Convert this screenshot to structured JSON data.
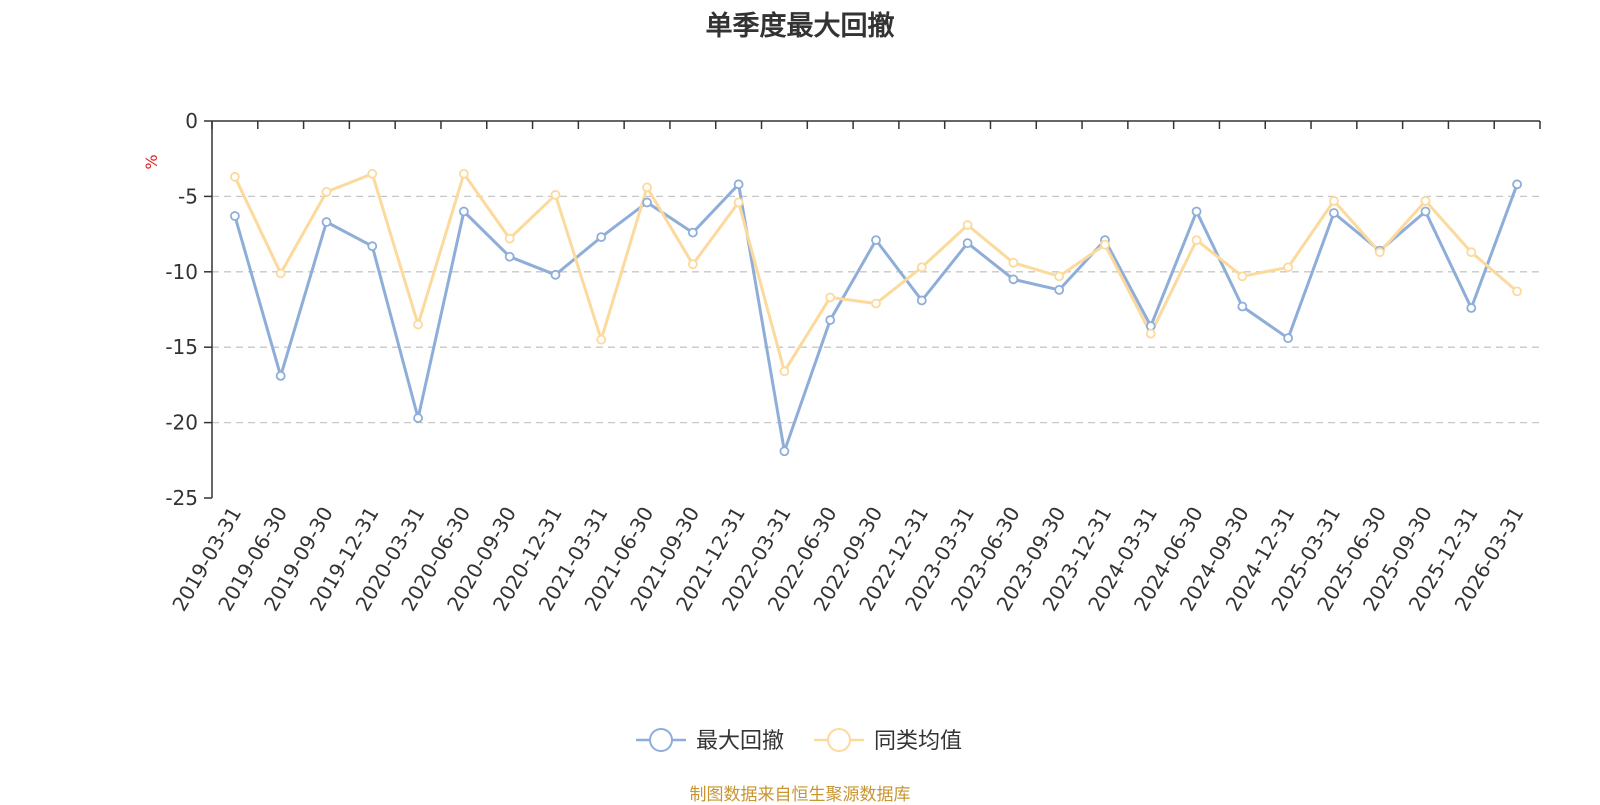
{
  "chart_data": {
    "type": "line",
    "title": "单季度最大回撤",
    "ylabel": "%",
    "ylim": [
      -25,
      0
    ],
    "yticks": [
      0,
      -5,
      -10,
      -15,
      -20,
      -25
    ],
    "grid": true,
    "legend_position": "bottom-center",
    "x": [
      "2019-03-31",
      "2019-06-30",
      "2019-09-30",
      "2019-12-31",
      "2020-03-31",
      "2020-06-30",
      "2020-09-30",
      "2020-12-31",
      "2021-03-31",
      "2021-06-30",
      "2021-09-30",
      "2021-12-31",
      "2022-03-31",
      "2022-06-30",
      "2022-09-30",
      "2022-12-31",
      "2023-03-31",
      "2023-06-30",
      "2023-09-30",
      "2023-12-31",
      "2024-03-31",
      "2024-06-30",
      "2024-09-30",
      "2024-12-31",
      "2025-03-31",
      "2025-06-30",
      "2025-09-30",
      "2025-12-31",
      "2026-03-31"
    ],
    "series": [
      {
        "name": "最大回撤",
        "color": "#8eaed9",
        "values": [
          -6.3,
          -16.9,
          -6.7,
          -8.3,
          -19.7,
          -6.0,
          -9.0,
          -10.2,
          -7.7,
          -5.4,
          -7.4,
          -4.2,
          -21.9,
          -13.2,
          -7.9,
          -11.9,
          -8.1,
          -10.5,
          -11.2,
          -7.9,
          -13.6,
          -6.0,
          -12.3,
          -14.4,
          -6.1,
          -8.6,
          -6.0,
          -12.4,
          -4.2
        ]
      },
      {
        "name": "同类均值",
        "color": "#fcd99c",
        "values": [
          -3.7,
          -10.1,
          -4.7,
          -3.5,
          -13.5,
          -3.5,
          -7.8,
          -4.9,
          -14.5,
          -4.4,
          -9.5,
          -5.4,
          -16.6,
          -11.7,
          -12.1,
          -9.7,
          -6.9,
          -9.4,
          -10.3,
          -8.2,
          -14.1,
          -7.9,
          -10.3,
          -9.7,
          -5.3,
          -8.7,
          -5.3,
          -8.7,
          -11.3
        ]
      }
    ],
    "source_note": "制图数据来自恒生聚源数据库"
  }
}
